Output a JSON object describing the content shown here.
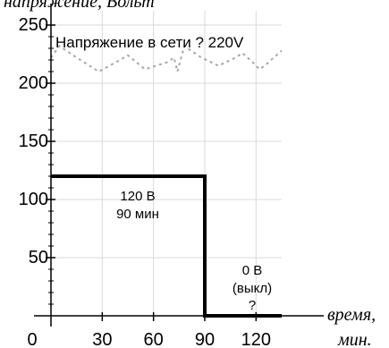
{
  "chart_data": {
    "type": "line",
    "ylabel": "напряжение, Вольт",
    "xlabel_line1": "время,",
    "xlabel_line2": "мин.",
    "x_ticks": [
      0,
      30,
      60,
      90,
      120
    ],
    "y_ticks": [
      50,
      100,
      150,
      200,
      250
    ],
    "xlim": [
      0,
      135
    ],
    "ylim": [
      0,
      260
    ],
    "grid": true,
    "series": [
      {
        "name": "Напряжение в сети ? 220V",
        "style": "dotted",
        "color": "#a6a6a6",
        "x": [
          0,
          5,
          15,
          28,
          38,
          45,
          55,
          68,
          72,
          74,
          78,
          88,
          98,
          108,
          112,
          118,
          122,
          125,
          135
        ],
        "y": [
          222,
          232,
          222,
          210,
          218,
          224,
          212,
          218,
          222,
          210,
          232,
          222,
          215,
          222,
          226,
          218,
          212,
          215,
          228
        ]
      },
      {
        "name": "",
        "style": "solid",
        "color": "#000000",
        "x": [
          0,
          90,
          90,
          135
        ],
        "y": [
          120,
          120,
          0,
          0
        ]
      }
    ],
    "annotations": [
      {
        "lines": [
          "120 В",
          "90 мин"
        ]
      },
      {
        "lines": [
          "0 В",
          "(выкл)",
          "?"
        ]
      }
    ]
  }
}
